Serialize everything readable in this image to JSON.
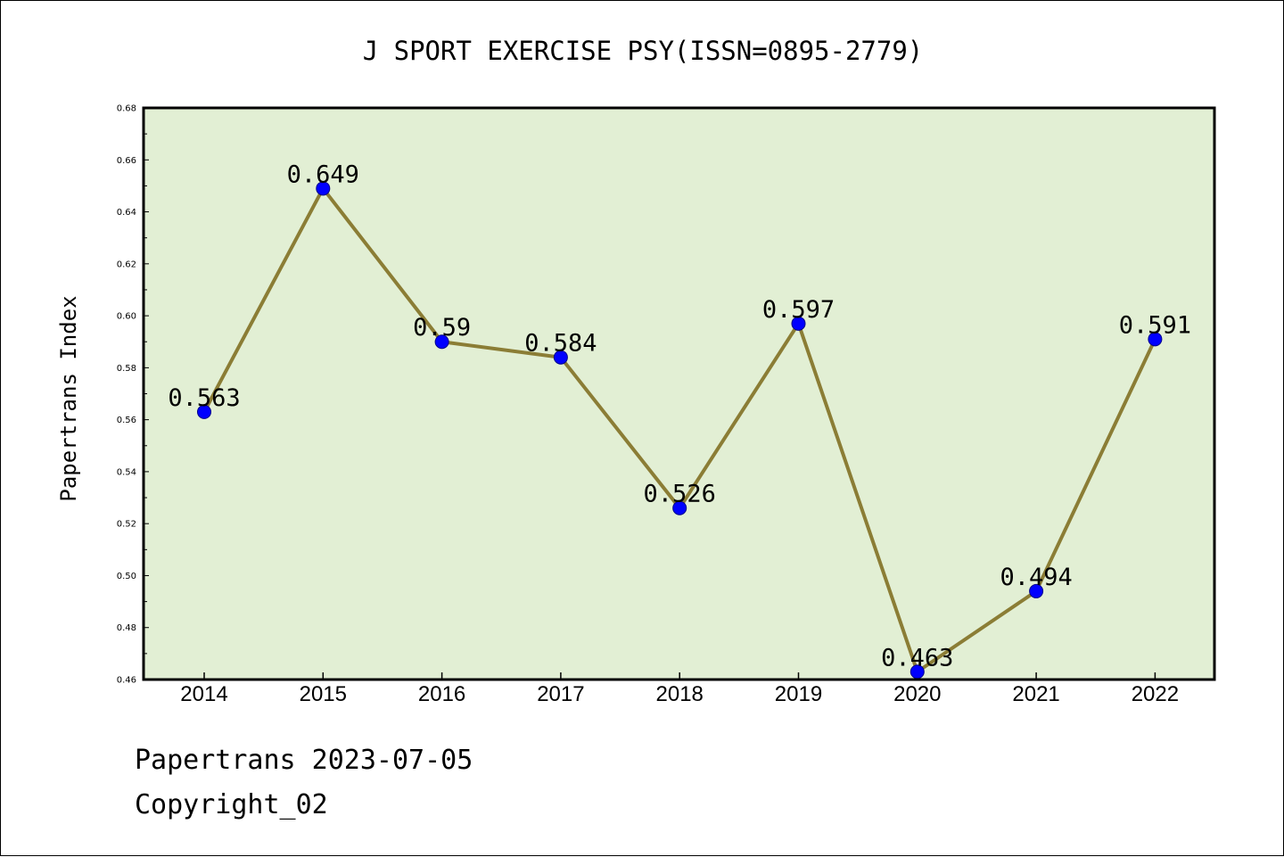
{
  "chart_data": {
    "type": "line",
    "title": "J SPORT EXERCISE PSY(ISSN=0895-2779)",
    "xlabel": "",
    "ylabel": "Papertrans Index",
    "categories": [
      "2014",
      "2015",
      "2016",
      "2017",
      "2018",
      "2019",
      "2020",
      "2021",
      "2022"
    ],
    "series": [
      {
        "name": "Papertrans Index",
        "values": [
          0.563,
          0.649,
          0.59,
          0.584,
          0.526,
          0.597,
          0.463,
          0.494,
          0.591
        ],
        "labels": [
          "0.563",
          "0.649",
          "0.59",
          "0.584",
          "0.526",
          "0.597",
          "0.463",
          "0.494",
          "0.591"
        ]
      }
    ],
    "ylim": [
      0.46,
      0.68
    ],
    "yticks": [
      "0.46",
      "0.48",
      "0.50",
      "0.52",
      "0.54",
      "0.56",
      "0.58",
      "0.60",
      "0.62",
      "0.64",
      "0.66",
      "0.68"
    ],
    "grid": false,
    "colors": {
      "plot_background": "#e2efd4",
      "line": "#8b7d35",
      "marker": "#0000ff",
      "marker_edge": "#00008b"
    }
  },
  "footer": {
    "line1": "Papertrans 2023-07-05",
    "line2": "Copyright_02"
  }
}
